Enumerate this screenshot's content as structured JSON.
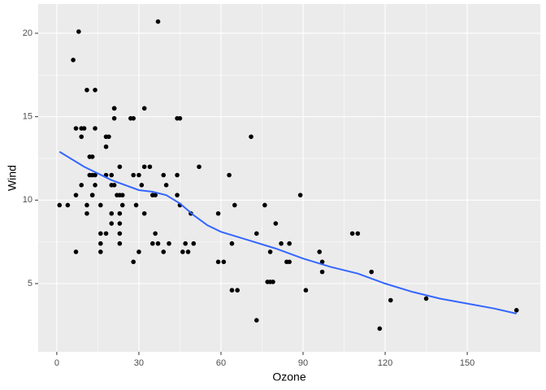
{
  "chart_data": {
    "type": "scatter",
    "x_label": "Ozone",
    "y_label": "Wind",
    "x": [
      41,
      36,
      12,
      18,
      28,
      23,
      19,
      8,
      7,
      16,
      11,
      14,
      18,
      14,
      34,
      6,
      30,
      11,
      1,
      11,
      4,
      32,
      23,
      45,
      115,
      37,
      29,
      71,
      39,
      23,
      21,
      37,
      20,
      12,
      13,
      135,
      49,
      32,
      64,
      40,
      77,
      97,
      97,
      85,
      10,
      27,
      7,
      48,
      35,
      61,
      79,
      63,
      16,
      80,
      108,
      20,
      52,
      82,
      50,
      64,
      59,
      39,
      9,
      16,
      78,
      35,
      66,
      122,
      89,
      110,
      44,
      28,
      65,
      22,
      59,
      23,
      31,
      44,
      21,
      9,
      45,
      168,
      73,
      76,
      118,
      84,
      85,
      96,
      78,
      73,
      91,
      47,
      32,
      20,
      23,
      21,
      24,
      44,
      21,
      28,
      9,
      13,
      46,
      18,
      13,
      24,
      16,
      13,
      23,
      36,
      7,
      14,
      30,
      14,
      18,
      20
    ],
    "y": [
      7.4,
      8.0,
      12.6,
      11.5,
      14.9,
      8.6,
      13.8,
      20.1,
      6.9,
      9.7,
      9.2,
      10.9,
      13.2,
      11.5,
      12.0,
      18.4,
      11.5,
      9.7,
      9.7,
      16.6,
      9.7,
      12.0,
      12.0,
      14.9,
      5.7,
      7.4,
      9.7,
      13.8,
      11.5,
      8.0,
      14.9,
      20.7,
      9.2,
      11.5,
      10.3,
      4.1,
      9.2,
      9.2,
      4.6,
      10.9,
      5.1,
      6.3,
      5.7,
      7.4,
      14.3,
      14.9,
      14.3,
      6.9,
      10.3,
      6.3,
      5.1,
      11.5,
      6.9,
      8.6,
      8.0,
      8.6,
      12.0,
      7.4,
      7.4,
      7.4,
      9.2,
      6.9,
      13.8,
      7.4,
      6.9,
      7.4,
      4.6,
      4.0,
      10.3,
      8.0,
      11.5,
      11.5,
      9.7,
      10.3,
      6.3,
      7.4,
      10.9,
      10.3,
      15.5,
      14.3,
      9.7,
      3.4,
      8.0,
      9.7,
      2.3,
      6.3,
      6.3,
      6.9,
      5.1,
      2.8,
      4.6,
      7.4,
      15.5,
      10.9,
      10.3,
      10.9,
      9.7,
      14.9,
      15.5,
      6.3,
      10.9,
      11.5,
      6.9,
      13.8,
      10.3,
      10.3,
      8.0,
      12.6,
      9.2,
      10.3,
      10.3,
      16.6,
      6.9,
      14.3,
      8.0,
      11.5
    ],
    "color": "#000000",
    "smooth": {
      "color": "#3366FF",
      "x": [
        1,
        10,
        20,
        30,
        35,
        40,
        45,
        50,
        55,
        60,
        70,
        80,
        90,
        100,
        110,
        120,
        130,
        140,
        150,
        160,
        168
      ],
      "y": [
        12.9,
        12.0,
        11.2,
        10.6,
        10.5,
        10.3,
        9.8,
        9.1,
        8.5,
        8.1,
        7.6,
        7.1,
        6.5,
        6.0,
        5.6,
        5.0,
        4.5,
        4.1,
        3.8,
        3.5,
        3.2
      ]
    },
    "xlim": [
      -6.8,
      176.7
    ],
    "ylim": [
      0.91,
      21.75
    ],
    "xticks": [
      0,
      30,
      60,
      90,
      120,
      150
    ],
    "yticks": [
      5,
      10,
      15,
      20
    ],
    "grid": true
  }
}
